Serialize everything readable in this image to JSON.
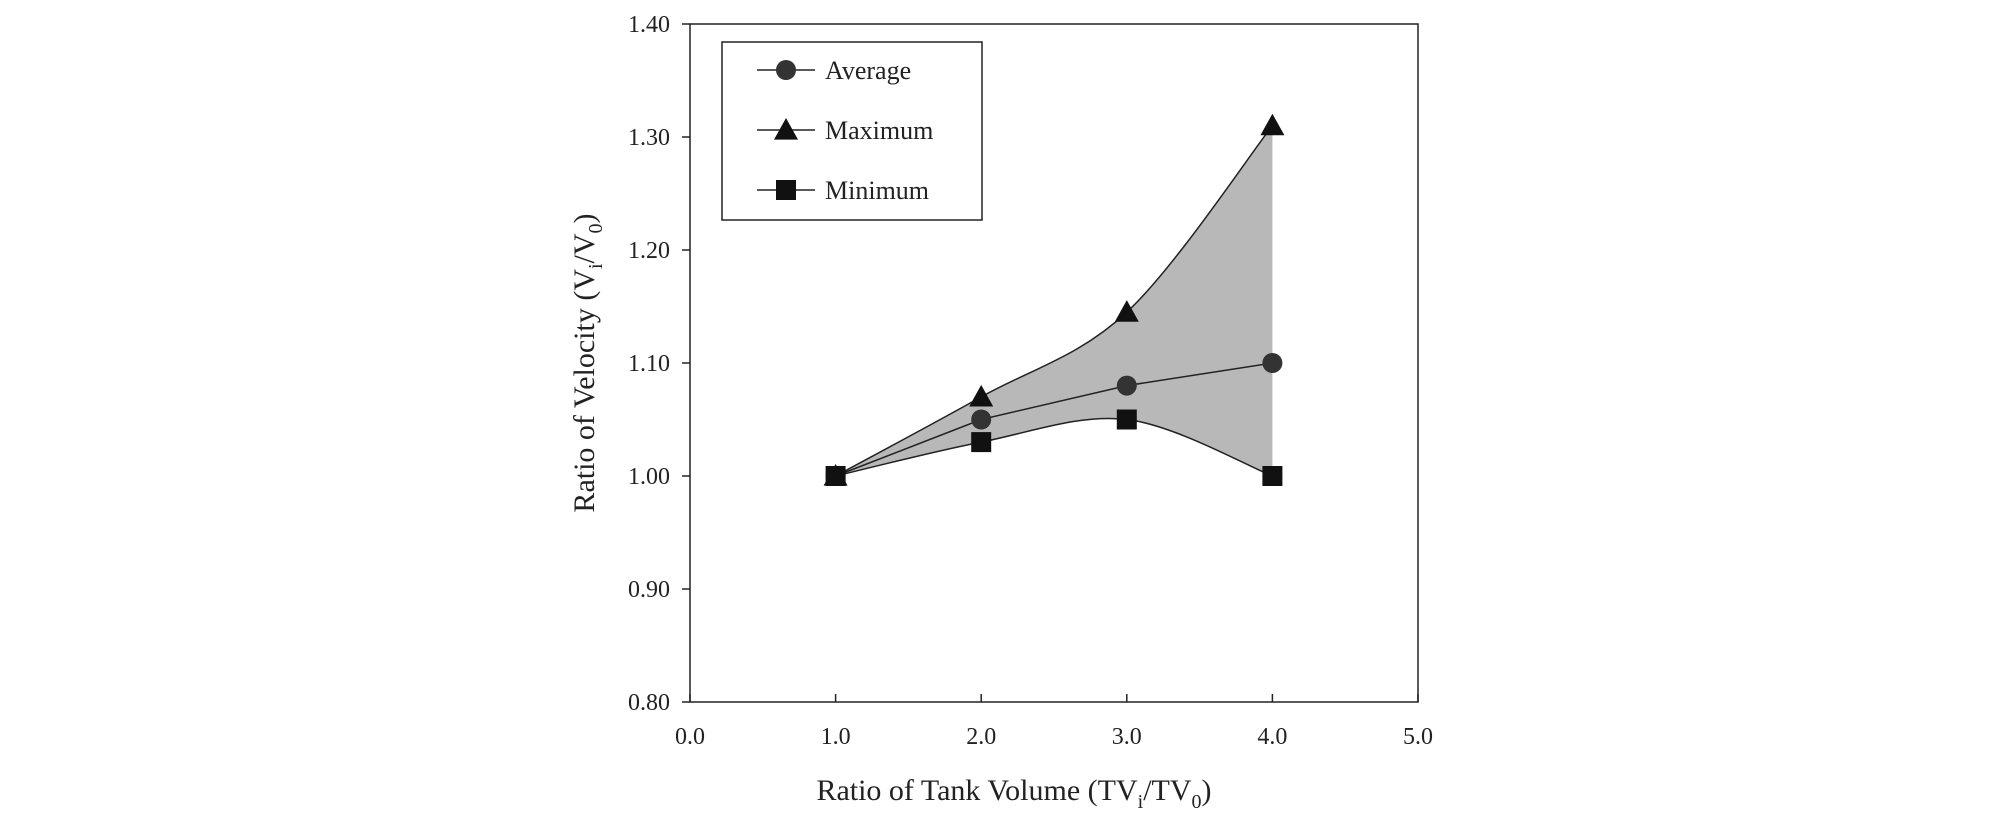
{
  "chart_data": {
    "type": "line",
    "xlabel": {
      "main": "Ratio of Tank Volume (TV",
      "sub1": "i",
      "mid": "/TV",
      "sub2": "0",
      "end": ")"
    },
    "ylabel": {
      "main": "Ratio of Velocity (V",
      "sub1": "i",
      "mid": "/V",
      "sub2": "0",
      "end": ")"
    },
    "xlim": [
      0,
      5
    ],
    "ylim": [
      0.8,
      1.4
    ],
    "x_ticks": [
      0,
      1,
      2,
      3,
      4,
      5
    ],
    "x_tick_labels": [
      "0.0",
      "1.0",
      "2.0",
      "3.0",
      "4.0",
      "5.0"
    ],
    "y_ticks": [
      0.8,
      0.9,
      1.0,
      1.1,
      1.2,
      1.3,
      1.4
    ],
    "y_tick_labels": [
      "0.80",
      "0.90",
      "1.00",
      "1.10",
      "1.20",
      "1.30",
      "1.40"
    ],
    "grid": false,
    "legend_position": "top-left",
    "shaded_band_between": [
      "Maximum",
      "Minimum"
    ],
    "band_color": "#b8b8b8",
    "x": [
      1,
      2,
      3,
      4
    ],
    "series": [
      {
        "name": "Average",
        "marker": "circle",
        "color": "#333333",
        "values": [
          1.0,
          1.05,
          1.08,
          1.1
        ]
      },
      {
        "name": "Maximum",
        "marker": "triangle",
        "color": "#111111",
        "values": [
          1.0,
          1.07,
          1.145,
          1.31
        ]
      },
      {
        "name": "Minimum",
        "marker": "square",
        "color": "#111111",
        "values": [
          1.0,
          1.03,
          1.05,
          1.0
        ]
      }
    ]
  }
}
